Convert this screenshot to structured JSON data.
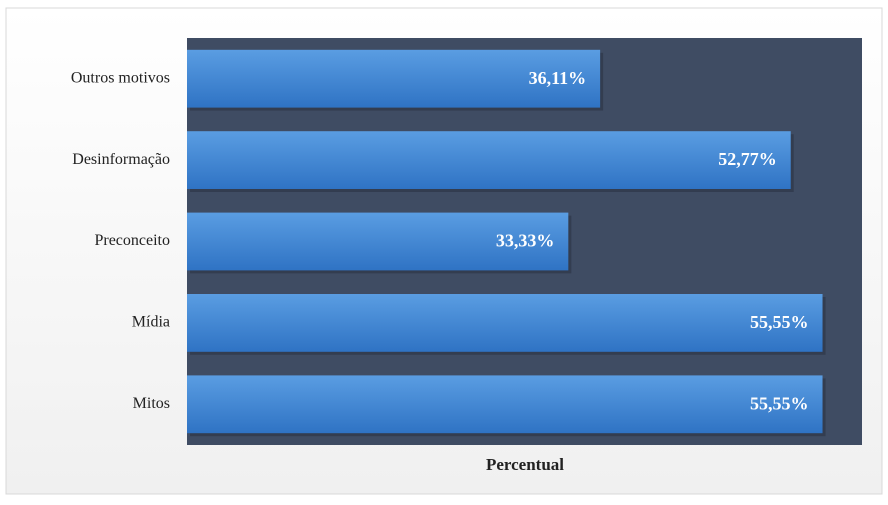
{
  "chart_data": {
    "type": "barh",
    "categories": [
      "Outros motivos",
      "Desinformação",
      "Preconceito",
      "Mídia",
      "Mitos"
    ],
    "values": [
      36.11,
      52.77,
      33.33,
      55.55,
      55.55
    ],
    "value_labels": [
      "36,11%",
      "52,77%",
      "33,33%",
      "55,55%",
      "55,55%"
    ],
    "xlabel": "Percentual",
    "xlim": [
      0,
      59
    ],
    "color": "#3f86d6"
  }
}
